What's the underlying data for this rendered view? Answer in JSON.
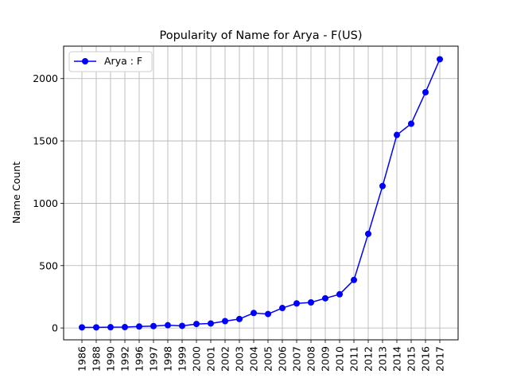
{
  "chart_data": {
    "type": "line",
    "title": "Popularity of Name for Arya - F(US)",
    "xlabel": "",
    "ylabel": "Name Count",
    "categories": [
      "1986",
      "1988",
      "1990",
      "1992",
      "1996",
      "1997",
      "1998",
      "1999",
      "2000",
      "2001",
      "2002",
      "2003",
      "2004",
      "2005",
      "2006",
      "2007",
      "2008",
      "2009",
      "2010",
      "2011",
      "2012",
      "2013",
      "2014",
      "2015",
      "2016",
      "2017"
    ],
    "series": [
      {
        "name": "Arya : F",
        "color": "#0000ff",
        "marker": "circle",
        "values": [
          5,
          5,
          6,
          7,
          12,
          15,
          22,
          17,
          32,
          36,
          55,
          72,
          120,
          112,
          160,
          197,
          205,
          238,
          270,
          385,
          755,
          1138,
          1548,
          1638,
          1890,
          2155
        ]
      }
    ],
    "yticks": [
      0,
      500,
      1000,
      1500,
      2000
    ],
    "ylim": [
      -95,
      2260
    ],
    "grid": true,
    "legend": "top-left"
  }
}
